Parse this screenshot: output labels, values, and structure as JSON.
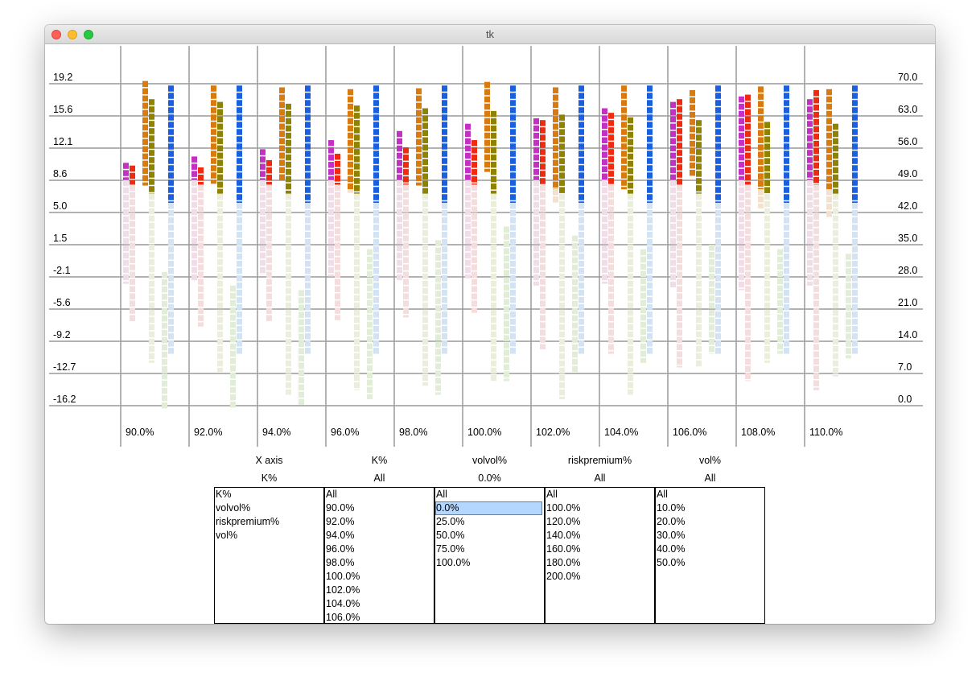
{
  "window": {
    "title": "tk"
  },
  "chart_data": {
    "type": "bar",
    "categories": [
      "90.0%",
      "92.0%",
      "94.0%",
      "96.0%",
      "98.0%",
      "100.0%",
      "102.0%",
      "104.0%",
      "106.0%",
      "108.0%",
      "110.0%"
    ],
    "left_axis": {
      "ticks": [
        "19.2",
        "15.6",
        "12.1",
        "8.6",
        "5.0",
        "1.5",
        "-2.1",
        "-5.6",
        "-9.2",
        "-12.7",
        "-16.2"
      ],
      "ylim": [
        -16.2,
        19.2
      ]
    },
    "right_axis": {
      "ticks": [
        "70.0",
        "63.0",
        "56.0",
        "49.0",
        "42.0",
        "35.0",
        "28.0",
        "21.0",
        "14.0",
        "7.0",
        "0.0"
      ],
      "ylim": [
        0.0,
        70.0
      ]
    },
    "columns": [
      {
        "name": "magenta",
        "color": "#c430c4",
        "pale": "#f0dde8",
        "values": [
          10.5,
          11.2,
          12.0,
          13.0,
          14.0,
          14.8,
          15.4,
          16.5,
          17.2,
          17.8,
          17.5
        ],
        "bottom": [
          -2.8,
          -2.5,
          -1.8,
          -2.0,
          -2.5,
          -2.2,
          -3.0,
          -2.8,
          -3.2,
          -3.5,
          -3.0
        ]
      },
      {
        "name": "red",
        "color": "#ee2a10",
        "pale": "#f3dddd",
        "values": [
          10.2,
          10.0,
          10.8,
          11.5,
          12.2,
          13.0,
          15.2,
          16.0,
          17.5,
          18.0,
          18.5
        ],
        "bottom": [
          -7.0,
          -7.5,
          -7.0,
          -6.8,
          -6.5,
          -6.0,
          -10.0,
          -10.5,
          -12.0,
          -13.5,
          -14.5
        ]
      },
      {
        "name": "orange",
        "color": "#d97a0f",
        "pale": "#f3e1cc",
        "values": [
          19.5,
          19.0,
          18.8,
          18.6,
          18.7,
          19.4,
          18.8,
          19.0,
          18.5,
          18.9,
          18.6
        ],
        "bottom": [
          8.0,
          8.2,
          8.5,
          7.2,
          8.0,
          9.5,
          6.0,
          7.5,
          9.0,
          5.5,
          4.5
        ]
      },
      {
        "name": "olive",
        "color": "#8e8200",
        "pale": "#eceedd",
        "values": [
          17.5,
          17.2,
          17.0,
          16.8,
          16.5,
          16.2,
          15.8,
          15.5,
          15.2,
          15.0,
          14.8
        ],
        "bottom": [
          -11.5,
          -12.5,
          -15.0,
          -14.5,
          -14.0,
          -13.5,
          -15.5,
          -15.0,
          -12.0,
          -11.5,
          -13.0
        ]
      },
      {
        "name": "green",
        "color": "#0e7a0e",
        "pale": "#e2edd8",
        "values": [
          -1.5,
          -3.0,
          -3.5,
          1.0,
          2.0,
          3.5,
          2.5,
          1.0,
          1.5,
          1.0,
          0.5
        ],
        "bottom": [
          -16.5,
          -16.5,
          -16.2,
          -15.5,
          -15.0,
          -13.5,
          -12.5,
          -11.5,
          -10.5,
          -10.5,
          -11.0
        ]
      },
      {
        "name": "blue",
        "color": "#1a5fe0",
        "pale": "#d3e3f3",
        "values": [
          19.0,
          19.0,
          19.0,
          19.0,
          19.0,
          19.0,
          19.0,
          19.0,
          19.0,
          19.0,
          19.0
        ],
        "bottom": [
          -10.5,
          -10.5,
          -10.5,
          -10.5,
          -10.5,
          -10.5,
          -10.5,
          -10.5,
          -10.5,
          -10.5,
          -10.5
        ]
      }
    ]
  },
  "selectors": {
    "headers": [
      "X axis",
      "K%",
      "volvol%",
      "riskpremium%",
      "vol%"
    ],
    "current": [
      "K%",
      "All",
      "0.0%",
      "All",
      "All"
    ],
    "lists": [
      {
        "name": "xaxis-list",
        "items": [
          "K%",
          "volvol%",
          "riskpremium%",
          "vol%"
        ],
        "selected": -1
      },
      {
        "name": "k-list",
        "items": [
          "All",
          "90.0%",
          "92.0%",
          "94.0%",
          "96.0%",
          "98.0%",
          "100.0%",
          "102.0%",
          "104.0%",
          "106.0%"
        ],
        "selected": -1
      },
      {
        "name": "volvol-list",
        "items": [
          "All",
          "0.0%",
          "25.0%",
          "50.0%",
          "75.0%",
          "100.0%"
        ],
        "selected": 1
      },
      {
        "name": "riskpremium-list",
        "items": [
          "All",
          "100.0%",
          "120.0%",
          "140.0%",
          "160.0%",
          "180.0%",
          "200.0%"
        ],
        "selected": -1
      },
      {
        "name": "vol-list",
        "items": [
          "All",
          "10.0%",
          "20.0%",
          "30.0%",
          "40.0%",
          "50.0%"
        ],
        "selected": -1
      }
    ]
  }
}
